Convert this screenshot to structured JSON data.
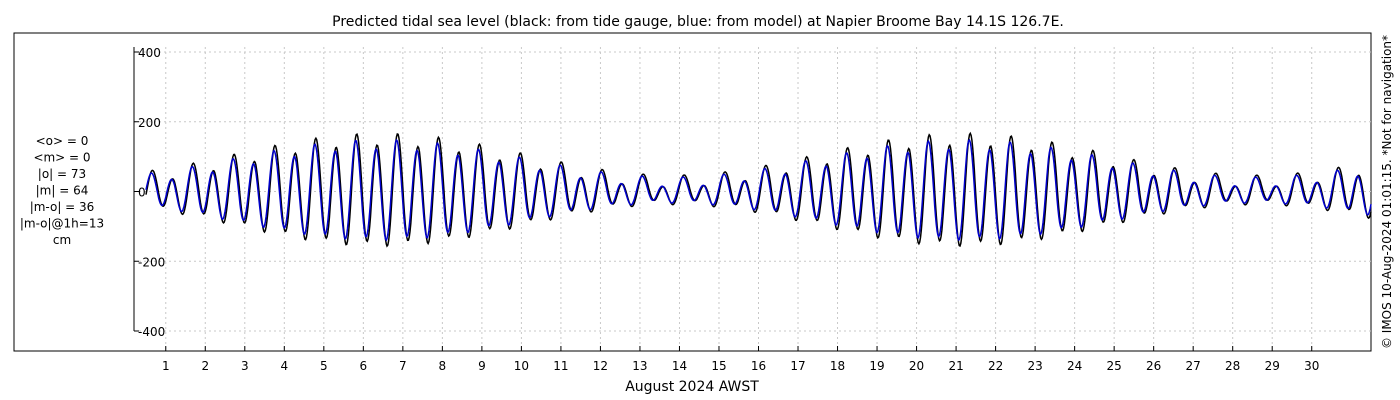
{
  "chart_data": {
    "type": "line",
    "title": "Predicted tidal sea level (black: from tide gauge, blue: from model) at Napier Broome Bay 14.1S 126.7E.",
    "xlabel": "August 2024 AWST",
    "ylabel": "",
    "ylim": [
      -400,
      400
    ],
    "xlim": [
      0,
      31
    ],
    "yticks": [
      "400",
      "200",
      "0",
      "-200",
      "-400"
    ],
    "xticks": [
      "1",
      "2",
      "3",
      "4",
      "5",
      "6",
      "7",
      "8",
      "9",
      "10",
      "11",
      "12",
      "13",
      "14",
      "15",
      "16",
      "17",
      "18",
      "19",
      "20",
      "21",
      "22",
      "23",
      "24",
      "25",
      "26",
      "27",
      "28",
      "29",
      "30"
    ],
    "grid": true,
    "stats": [
      "<o> = 0",
      "<m> = 0",
      "|o| = 73",
      "|m| = 64",
      "|m-o| = 36",
      "|m-o|@1h=13",
      "cm"
    ],
    "side_note": "© IMOS 10-Aug-2024 01:01:15. *Not for navigation*",
    "series": [
      {
        "color": "#000000",
        "amp_max": 150,
        "amp_min": 30,
        "m2": 12.42,
        "s2": 12.0,
        "phase": -1.9,
        "bias": 18,
        "peak_day": 20.7
      },
      {
        "color": "#0000cc",
        "amp_max": 135,
        "amp_min": 28,
        "m2": 12.42,
        "s2": 12.0,
        "phase": -1.6,
        "bias": 14,
        "peak_day": 20.7
      }
    ]
  }
}
